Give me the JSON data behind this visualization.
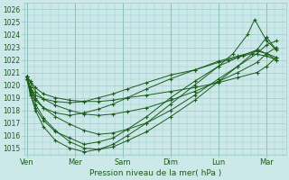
{
  "title": "",
  "xlabel": "Pression niveau de la mer( hPa )",
  "ylabel": "",
  "background_color": "#cce8e8",
  "grid_color": "#99cccc",
  "line_color": "#1a5c1a",
  "ylim": [
    1014.5,
    1026.5
  ],
  "yticks": [
    1015,
    1016,
    1017,
    1018,
    1019,
    1020,
    1021,
    1022,
    1023,
    1024,
    1025,
    1026
  ],
  "xtick_labels": [
    "Ven",
    "Mer",
    "Sam",
    "Dim",
    "Lun",
    "Mar"
  ],
  "xtick_positions": [
    0.0,
    1.0,
    2.0,
    3.0,
    4.0,
    5.0
  ],
  "xlim": [
    -0.05,
    5.4
  ],
  "series": [
    {
      "x": [
        0.0,
        0.08,
        0.18,
        0.35,
        0.6,
        0.9,
        1.2,
        1.5,
        1.8,
        2.1,
        2.5,
        3.0,
        3.5,
        4.0,
        4.4,
        4.8,
        5.0,
        5.2
      ],
      "y": [
        1020.7,
        1020.3,
        1019.8,
        1019.3,
        1019.0,
        1018.8,
        1018.7,
        1018.7,
        1018.8,
        1019.0,
        1019.2,
        1019.5,
        1019.8,
        1020.2,
        1020.6,
        1021.0,
        1021.5,
        1022.2
      ]
    },
    {
      "x": [
        0.0,
        0.08,
        0.18,
        0.35,
        0.6,
        0.9,
        1.2,
        1.5,
        1.8,
        2.1,
        2.5,
        3.0,
        3.5,
        4.0,
        4.4,
        4.8,
        5.0,
        5.2
      ],
      "y": [
        1020.7,
        1020.2,
        1019.5,
        1018.9,
        1018.4,
        1018.0,
        1017.7,
        1017.6,
        1017.7,
        1017.9,
        1018.2,
        1018.8,
        1019.5,
        1020.3,
        1021.0,
        1021.8,
        1022.5,
        1023.0
      ]
    },
    {
      "x": [
        0.0,
        0.08,
        0.18,
        0.35,
        0.6,
        0.9,
        1.2,
        1.5,
        1.8,
        2.1,
        2.5,
        3.0,
        3.5,
        4.0,
        4.4,
        4.8,
        5.0,
        5.2
      ],
      "y": [
        1020.7,
        1019.8,
        1019.0,
        1018.2,
        1017.5,
        1016.9,
        1016.4,
        1016.1,
        1016.2,
        1016.5,
        1017.0,
        1018.0,
        1019.2,
        1020.5,
        1021.5,
        1022.5,
        1023.2,
        1023.5
      ]
    },
    {
      "x": [
        0.0,
        0.08,
        0.18,
        0.35,
        0.6,
        0.9,
        1.2,
        1.5,
        1.8,
        2.1,
        2.5,
        3.0,
        3.5,
        4.0,
        4.4,
        4.8,
        5.0,
        5.2
      ],
      "y": [
        1020.7,
        1019.5,
        1018.5,
        1017.4,
        1016.4,
        1015.5,
        1015.0,
        1014.9,
        1015.1,
        1015.6,
        1016.3,
        1017.5,
        1018.8,
        1020.3,
        1021.5,
        1022.8,
        1023.8,
        1022.8
      ]
    },
    {
      "x": [
        0.0,
        0.08,
        0.18,
        0.35,
        0.6,
        0.9,
        1.2,
        1.5,
        1.8,
        2.1,
        2.5,
        3.0,
        3.5,
        4.0,
        4.3,
        4.6,
        4.75,
        5.0,
        5.2
      ],
      "y": [
        1020.7,
        1019.3,
        1018.0,
        1016.7,
        1015.6,
        1015.0,
        1014.7,
        1014.9,
        1015.3,
        1016.0,
        1017.0,
        1018.5,
        1020.0,
        1021.5,
        1022.5,
        1024.0,
        1025.2,
        1023.5,
        1022.8
      ]
    },
    {
      "x": [
        0.0,
        0.08,
        0.18,
        0.35,
        0.6,
        0.9,
        1.2,
        1.5,
        1.8,
        2.1,
        2.5,
        3.0,
        3.5,
        4.0,
        4.2,
        4.5,
        4.7,
        5.0,
        5.2
      ],
      "y": [
        1020.5,
        1019.8,
        1019.2,
        1018.9,
        1018.7,
        1018.6,
        1018.7,
        1019.0,
        1019.3,
        1019.7,
        1020.2,
        1020.8,
        1021.2,
        1021.8,
        1022.0,
        1022.3,
        1022.5,
        1022.3,
        1022.0
      ]
    },
    {
      "x": [
        0.0,
        0.08,
        0.18,
        0.35,
        0.6,
        0.9,
        1.2,
        1.5,
        1.8,
        2.1,
        2.5,
        3.0,
        3.5,
        4.0,
        4.4,
        4.8,
        5.0,
        5.2
      ],
      "y": [
        1020.5,
        1019.6,
        1018.8,
        1018.2,
        1017.8,
        1017.6,
        1017.8,
        1018.1,
        1018.5,
        1019.0,
        1019.7,
        1020.5,
        1021.2,
        1021.9,
        1022.3,
        1022.7,
        1022.5,
        1022.2
      ]
    },
    {
      "x": [
        0.0,
        0.08,
        0.18,
        0.35,
        0.6,
        0.9,
        1.2,
        1.5,
        1.8,
        2.1,
        2.5,
        3.0,
        3.5,
        4.0,
        4.4,
        4.8,
        5.0,
        5.2
      ],
      "y": [
        1020.5,
        1019.2,
        1018.2,
        1017.2,
        1016.3,
        1015.8,
        1015.3,
        1015.5,
        1015.8,
        1016.5,
        1017.5,
        1019.0,
        1020.3,
        1021.5,
        1022.2,
        1022.8,
        1022.5,
        1022.0
      ]
    }
  ],
  "marker_size": 3.0,
  "linewidth": 0.7,
  "xlabel_fontsize": 6.5,
  "ytick_fontsize": 5.5,
  "xtick_fontsize": 6.0
}
